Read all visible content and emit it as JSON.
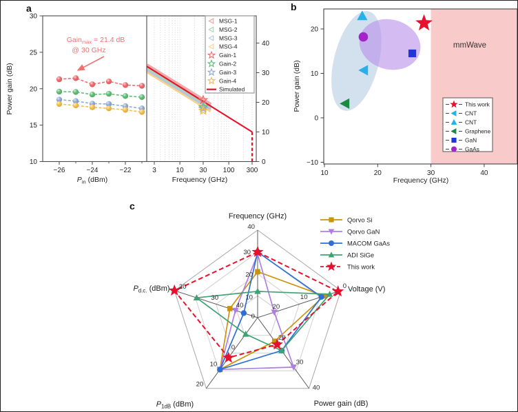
{
  "figure": {
    "panel_labels": {
      "a": "a",
      "b": "b",
      "c": "c"
    }
  },
  "chart_data": [
    {
      "panel": "a",
      "type": "line",
      "ylabel_left": "Power gain (dB)",
      "ylim_left": [
        10,
        30
      ],
      "yticks_left": [
        10,
        15,
        20,
        25,
        30
      ],
      "ylim_right": [
        0,
        49
      ],
      "yticks_right": [
        0,
        10,
        20,
        30,
        40
      ],
      "xlabel_pin_parts": [
        {
          "t": "P",
          "it": true
        },
        {
          "t": "in",
          "sub": true
        },
        {
          "t": " (dBm)"
        }
      ],
      "xlim_pin": [
        -27,
        -20.7
      ],
      "xticks_pin": [
        -26,
        -24,
        -22
      ],
      "xticks_pin_minor": [
        -25,
        -23,
        -21
      ],
      "xlabel_freq": "Frequency (GHz)",
      "xlim_freq": [
        2.13,
        366
      ],
      "xticks_freq": [
        3,
        10,
        30,
        100,
        300
      ],
      "grid_freq": [
        3,
        4,
        5,
        6,
        7,
        8,
        9,
        10,
        20,
        30,
        40,
        50,
        60,
        70,
        80,
        90,
        100,
        200,
        300
      ],
      "pin_x": [
        -26,
        -25,
        -24,
        -23,
        -22,
        -21
      ],
      "pin_series": [
        {
          "name": "Gain-1",
          "color": "#ee6a6c",
          "values": [
            21.3,
            21.45,
            20.6,
            21.0,
            20.5,
            20.4
          ]
        },
        {
          "name": "Gain-2",
          "color": "#5fbd74",
          "values": [
            19.6,
            19.55,
            19.2,
            19.3,
            19.0,
            18.85
          ]
        },
        {
          "name": "Gain-3",
          "color": "#8fa8d8",
          "values": [
            18.5,
            18.3,
            17.95,
            17.9,
            17.6,
            17.3
          ]
        },
        {
          "name": "Gain-4",
          "color": "#f2bd4a",
          "values": [
            17.9,
            17.7,
            17.45,
            17.3,
            17.1,
            16.8
          ]
        }
      ],
      "msg_lines": [
        {
          "name": "MSG-1",
          "color": "#f5a3a3",
          "f": [
            2.13,
            43
          ],
          "v": [
            32.6,
            19.3
          ]
        },
        {
          "name": "MSG-2",
          "color": "#a5d9b0",
          "f": [
            2.13,
            43
          ],
          "v": [
            31.8,
            18.5
          ]
        },
        {
          "name": "MSG-3",
          "color": "#b5c3e6",
          "f": [
            2.13,
            43
          ],
          "v": [
            31.1,
            17.8
          ]
        },
        {
          "name": "MSG-4",
          "color": "#f7d186",
          "f": [
            2.13,
            43
          ],
          "v": [
            30.4,
            17.1
          ]
        }
      ],
      "simulated": {
        "name": "Simulated",
        "color": "#e8112d",
        "f": [
          2.13,
          300
        ],
        "v": [
          32.1,
          10
        ],
        "fmax_dashed_at": 300
      },
      "gain_stars": [
        {
          "name": "Gain-1",
          "color": "#ee6a6c",
          "f": 30,
          "v": 20.8
        },
        {
          "name": "Gain-2",
          "color": "#5fbd74",
          "f": 30,
          "v": 18.4
        },
        {
          "name": "Gain-3",
          "color": "#8fa8d8",
          "f": 30,
          "v": 17.9
        },
        {
          "name": "Gain-4",
          "color": "#f2bd4a",
          "f": 30,
          "v": 17.2
        }
      ],
      "annotation": {
        "line1_parts": [
          {
            "t": "Gain"
          },
          {
            "t": "max",
            "sub": true
          },
          {
            "t": " = 21.4 dB"
          }
        ],
        "line2": "@ 30 GHz",
        "color": "#f0716f"
      },
      "legend": [
        {
          "label": "MSG-1",
          "marker": "tri-left-open",
          "color": "#f5a3a3"
        },
        {
          "label": "MSG-2",
          "marker": "tri-left-open",
          "color": "#a5d9b0"
        },
        {
          "label": "MSG-3",
          "marker": "tri-left-open",
          "color": "#b5c3e6"
        },
        {
          "label": "MSG-4",
          "marker": "tri-left-open",
          "color": "#f7d186"
        },
        {
          "label": "Gain-1",
          "marker": "star-open",
          "color": "#ee6a6c"
        },
        {
          "label": "Gain-2",
          "marker": "star-open",
          "color": "#5fbd74"
        },
        {
          "label": "Gain-3",
          "marker": "star-open",
          "color": "#8fa8d8"
        },
        {
          "label": "Gain-4",
          "marker": "star-open",
          "color": "#f2bd4a"
        },
        {
          "label": "Simulated",
          "marker": "line",
          "color": "#e8112d"
        }
      ]
    },
    {
      "panel": "b",
      "type": "scatter",
      "xlabel": "Frequency (GHz)",
      "ylabel": "Power gain (dB)",
      "xlim": [
        10,
        46.3
      ],
      "xticks": [
        10,
        20,
        30,
        40
      ],
      "ylim": [
        -10.4,
        24.5
      ],
      "yticks": [
        -10,
        0,
        10,
        20
      ],
      "mmwave_region": {
        "label": "mmWave",
        "x_start": 30,
        "fill": "#f8caca",
        "label_color": "#3a3335"
      },
      "ellipses": [
        {
          "fill": "#aec7e0",
          "opacity": 0.55,
          "cx": 16.0,
          "cy": 12.8,
          "rx": 4.2,
          "ry": 11.5,
          "rotate": 14
        },
        {
          "fill": "#ba92e8",
          "opacity": 0.62,
          "cx": 22.3,
          "cy": 16.5,
          "rx": 5.8,
          "ry": 5.6,
          "rotate": 15
        }
      ],
      "points": [
        {
          "name": "CNT",
          "marker": "tri-up",
          "color": "#29b0e8",
          "x": 17.1,
          "y": 22.9
        },
        {
          "name": "GaAs",
          "marker": "circle",
          "color": "#a424c9",
          "x": 17.3,
          "y": 18.2
        },
        {
          "name": "CNT",
          "marker": "tri-left",
          "color": "#29b0e8",
          "x": 17.4,
          "y": 10.7
        },
        {
          "name": "Graphene",
          "marker": "tri-left",
          "color": "#1d8a43",
          "x": 13.9,
          "y": 3.2
        },
        {
          "name": "GaN",
          "marker": "square",
          "color": "#2236d8",
          "x": 26.5,
          "y": 14.5
        },
        {
          "name": "This work",
          "marker": "star",
          "color": "#e8112d",
          "x": 28.7,
          "y": 21.3
        }
      ],
      "legend": [
        {
          "label": "This work",
          "marker": "star",
          "color": "#e8112d"
        },
        {
          "label": "CNT",
          "marker": "tri-left",
          "color": "#29b0e8"
        },
        {
          "label": "CNT",
          "marker": "tri-up",
          "color": "#29b0e8"
        },
        {
          "label": "Graphene",
          "marker": "tri-left",
          "color": "#1d8a43"
        },
        {
          "label": "GaN",
          "marker": "square",
          "color": "#2236d8"
        },
        {
          "label": "GaAs",
          "marker": "circle",
          "color": "#a424c9"
        }
      ]
    },
    {
      "panel": "c",
      "type": "radar",
      "axes": [
        {
          "title_parts": [
            {
              "t": "Frequency (GHz)"
            }
          ],
          "center": 0,
          "vertex": 40,
          "ticks": [
            {
              "v": "0",
              "t": 0
            },
            {
              "v": "10",
              "t": 0.25
            },
            {
              "v": "20",
              "t": 0.5
            },
            {
              "v": "30",
              "t": 0.75
            },
            {
              "v": "40",
              "t": 1
            }
          ]
        },
        {
          "title_parts": [
            {
              "t": "Voltage (V)"
            }
          ],
          "center": 30,
          "vertex": 0,
          "ticks": [
            {
              "v": "20",
              "t": 0.333
            },
            {
              "v": "10",
              "t": 0.667
            },
            {
              "v": "0",
              "t": 1
            }
          ]
        },
        {
          "title_parts": [
            {
              "t": "Power gain (dB)"
            }
          ],
          "center": 10,
          "vertex": 40,
          "ticks": [
            {
              "v": "20",
              "t": 0.333
            },
            {
              "v": "30",
              "t": 0.667
            },
            {
              "v": "40",
              "t": 1
            }
          ]
        },
        {
          "title_parts": [
            {
              "t": "P",
              "it": true
            },
            {
              "t": "1dB",
              "sub": true
            },
            {
              "t": " (dBm)"
            }
          ],
          "center": -10,
          "vertex": 20,
          "ticks": [
            {
              "v": "0",
              "t": 0.333
            },
            {
              "v": "10",
              "t": 0.667
            },
            {
              "v": "20",
              "t": 1
            }
          ]
        },
        {
          "title_parts": [
            {
              "t": "P",
              "it": true
            },
            {
              "t": "d.c.",
              "sub": true
            },
            {
              "t": " (dBm)"
            }
          ],
          "center": 50,
          "vertex": 20,
          "ticks": [
            {
              "v": "40",
              "t": 0.333
            },
            {
              "v": "30",
              "t": 0.667
            },
            {
              "v": "20",
              "t": 1
            }
          ]
        }
      ],
      "axis_names": [
        "Frequency (GHz)",
        "Voltage (V)",
        "Power gain (dB)",
        "P1dB (dBm)",
        "Pd.c. (dBm)"
      ],
      "series": [
        {
          "name": "Qorvo Si",
          "color": "#c9940c",
          "marker": "square",
          "dash": false,
          "values": [
            21,
            6,
            20,
            12,
            40
          ]
        },
        {
          "name": "Qorvo GaN",
          "color": "#b07ee3",
          "marker": "tri-down",
          "dash": false,
          "values": [
            29,
            24,
            31,
            12,
            42
          ]
        },
        {
          "name": "MACOM GaAs",
          "color": "#2e6fd6",
          "marker": "circle",
          "dash": false,
          "values": [
            30,
            7,
            24,
            12,
            45
          ]
        },
        {
          "name": "ADI SiGe",
          "color": "#3ea273",
          "marker": "tri-up",
          "dash": false,
          "values": [
            12,
            4,
            24,
            -3,
            28
          ]
        },
        {
          "name": "This work",
          "color": "#e8112d",
          "marker": "star",
          "dash": true,
          "values": [
            30,
            1,
            21.4,
            7,
            20
          ]
        }
      ]
    }
  ]
}
